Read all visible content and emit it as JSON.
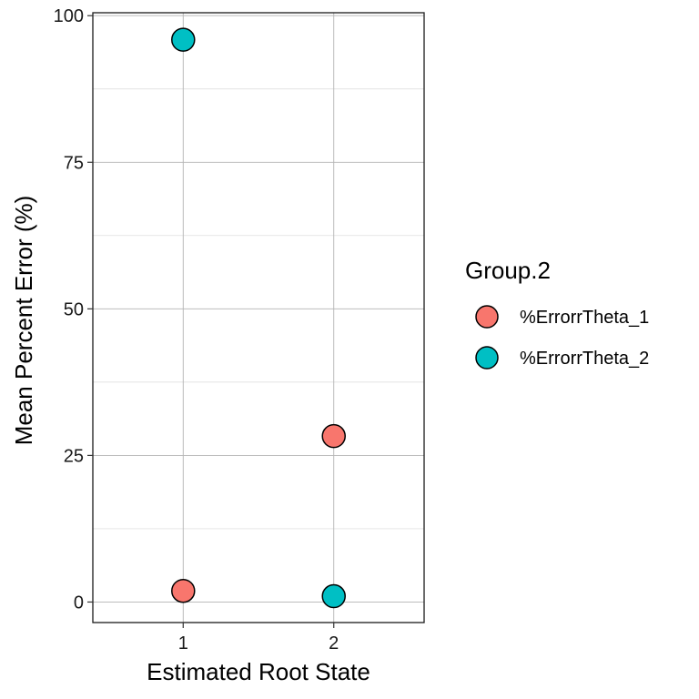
{
  "chart_data": {
    "type": "scatter",
    "title": "",
    "xlabel": "Estimated Root State",
    "ylabel": "Mean Percent Error (%)",
    "categories": [
      "1",
      "2"
    ],
    "ylim": [
      -3.5,
      100.5
    ],
    "y_ticks": [
      0,
      25,
      50,
      75,
      100
    ],
    "grid": true,
    "legend": {
      "title": "Group.2",
      "position": "right"
    },
    "series": [
      {
        "name": "%ErrorrTheta_1",
        "color": "#F8766D",
        "values": [
          1.9,
          28.3
        ]
      },
      {
        "name": "%ErrorrTheta_2",
        "color": "#00BFC4",
        "values": [
          95.9,
          1.0
        ]
      }
    ]
  }
}
